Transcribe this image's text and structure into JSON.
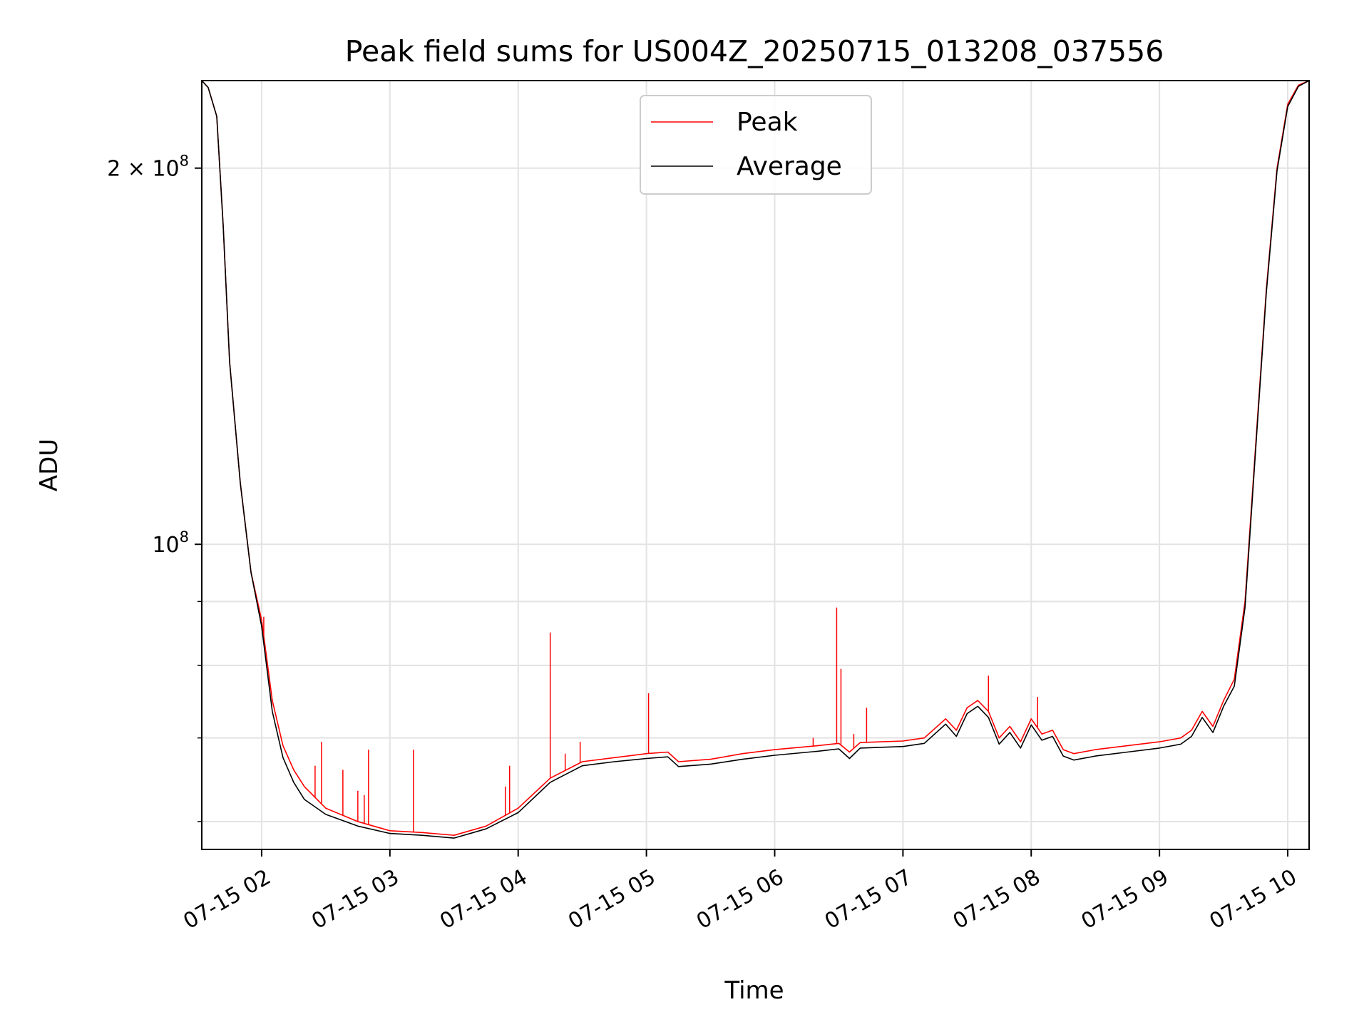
{
  "chart_data": {
    "type": "line",
    "title": "Peak field sums for US004Z_20250715_013208_037556",
    "xlabel": "Time",
    "ylabel": "ADU",
    "y_scale": "log",
    "grid": true,
    "legend_position": "top-center",
    "x_tick_labels": [
      "07-15 02",
      "07-15 03",
      "07-15 04",
      "07-15 05",
      "07-15 06",
      "07-15 07",
      "07-15 08",
      "07-15 09",
      "07-15 10"
    ],
    "y_tick_labels": [
      {
        "value": 100000000,
        "base": "10",
        "exp": "8",
        "prefix": ""
      },
      {
        "value": 200000000,
        "base": "10",
        "exp": "8",
        "prefix": "2 × "
      }
    ],
    "xlim": [
      "2025-07-15 01:32",
      "2025-07-15 10:10"
    ],
    "ylim": [
      57000000,
      235000000
    ],
    "x": [
      "2025-07-15 01:32",
      "2025-07-15 01:35",
      "2025-07-15 01:39",
      "2025-07-15 01:42",
      "2025-07-15 01:45",
      "2025-07-15 01:50",
      "2025-07-15 01:55",
      "2025-07-15 02:00",
      "2025-07-15 02:05",
      "2025-07-15 02:10",
      "2025-07-15 02:15",
      "2025-07-15 02:20",
      "2025-07-15 02:30",
      "2025-07-15 02:45",
      "2025-07-15 03:00",
      "2025-07-15 03:15",
      "2025-07-15 03:30",
      "2025-07-15 03:45",
      "2025-07-15 04:00",
      "2025-07-15 04:15",
      "2025-07-15 04:30",
      "2025-07-15 04:45",
      "2025-07-15 05:00",
      "2025-07-15 05:10",
      "2025-07-15 05:15",
      "2025-07-15 05:30",
      "2025-07-15 05:45",
      "2025-07-15 06:00",
      "2025-07-15 06:20",
      "2025-07-15 06:30",
      "2025-07-15 06:35",
      "2025-07-15 06:40",
      "2025-07-15 06:50",
      "2025-07-15 07:00",
      "2025-07-15 07:10",
      "2025-07-15 07:20",
      "2025-07-15 07:25",
      "2025-07-15 07:30",
      "2025-07-15 07:35",
      "2025-07-15 07:40",
      "2025-07-15 07:45",
      "2025-07-15 07:50",
      "2025-07-15 07:55",
      "2025-07-15 08:00",
      "2025-07-15 08:05",
      "2025-07-15 08:10",
      "2025-07-15 08:15",
      "2025-07-15 08:20",
      "2025-07-15 08:30",
      "2025-07-15 08:45",
      "2025-07-15 09:00",
      "2025-07-15 09:10",
      "2025-07-15 09:15",
      "2025-07-15 09:20",
      "2025-07-15 09:25",
      "2025-07-15 09:30",
      "2025-07-15 09:35",
      "2025-07-15 09:40",
      "2025-07-15 09:45",
      "2025-07-15 09:50",
      "2025-07-15 09:55",
      "2025-07-15 10:00",
      "2025-07-15 10:05",
      "2025-07-15 10:10"
    ],
    "series": [
      {
        "name": "Peak",
        "color": "#ff0000",
        "values": [
          235000000,
          232000000,
          220000000,
          180000000,
          140000000,
          112000000,
          95000000,
          87000000,
          75000000,
          69000000,
          66000000,
          64000000,
          61500000,
          60000000,
          59000000,
          58800000,
          58500000,
          59500000,
          61500000,
          65000000,
          67000000,
          67500000,
          68000000,
          68200000,
          67000000,
          67300000,
          68000000,
          68500000,
          69000000,
          69300000,
          68200000,
          69400000,
          69500000,
          69600000,
          70000000,
          72500000,
          71000000,
          74000000,
          75000000,
          73500000,
          70000000,
          71500000,
          69500000,
          72500000,
          70500000,
          71000000,
          68500000,
          68000000,
          68500000,
          69000000,
          69500000,
          70000000,
          71000000,
          73500000,
          71500000,
          75000000,
          78000000,
          90000000,
          120000000,
          160000000,
          200000000,
          225000000,
          233000000,
          235000000
        ]
      },
      {
        "name": "Average",
        "color": "#000000",
        "values": [
          235000000,
          232000000,
          220000000,
          180000000,
          140000000,
          112000000,
          95000000,
          86000000,
          73500000,
          67500000,
          64500000,
          62500000,
          60800000,
          59500000,
          58700000,
          58500000,
          58200000,
          59200000,
          61000000,
          64500000,
          66500000,
          67000000,
          67400000,
          67600000,
          66400000,
          66700000,
          67300000,
          67800000,
          68300000,
          68600000,
          67400000,
          68700000,
          68800000,
          68900000,
          69300000,
          71800000,
          70200000,
          73200000,
          74200000,
          72700000,
          69200000,
          70700000,
          68700000,
          71700000,
          69700000,
          70200000,
          67700000,
          67200000,
          67700000,
          68200000,
          68700000,
          69200000,
          70200000,
          72700000,
          70700000,
          74200000,
          77000000,
          89000000,
          119000000,
          159000000,
          199000000,
          224000000,
          232500000,
          235000000
        ]
      }
    ],
    "peak_spikes": [
      {
        "x": "2025-07-15 02:01",
        "y": 87500000
      },
      {
        "x": "2025-07-15 02:25",
        "y": 66500000
      },
      {
        "x": "2025-07-15 02:28",
        "y": 69500000
      },
      {
        "x": "2025-07-15 02:38",
        "y": 66000000
      },
      {
        "x": "2025-07-15 02:45",
        "y": 63500000
      },
      {
        "x": "2025-07-15 02:48",
        "y": 63000000
      },
      {
        "x": "2025-07-15 02:50",
        "y": 68500000
      },
      {
        "x": "2025-07-15 03:11",
        "y": 68500000
      },
      {
        "x": "2025-07-15 03:54",
        "y": 64000000
      },
      {
        "x": "2025-07-15 03:56",
        "y": 66500000
      },
      {
        "x": "2025-07-15 04:15",
        "y": 85000000
      },
      {
        "x": "2025-07-15 04:22",
        "y": 68000000
      },
      {
        "x": "2025-07-15 04:29",
        "y": 69500000
      },
      {
        "x": "2025-07-15 05:01",
        "y": 76000000
      },
      {
        "x": "2025-07-15 06:18",
        "y": 70000000
      },
      {
        "x": "2025-07-15 06:29",
        "y": 89000000
      },
      {
        "x": "2025-07-15 06:31",
        "y": 79500000
      },
      {
        "x": "2025-07-15 06:37",
        "y": 70500000
      },
      {
        "x": "2025-07-15 06:43",
        "y": 74000000
      },
      {
        "x": "2025-07-15 07:40",
        "y": 78500000
      },
      {
        "x": "2025-07-15 08:03",
        "y": 75500000
      }
    ]
  }
}
